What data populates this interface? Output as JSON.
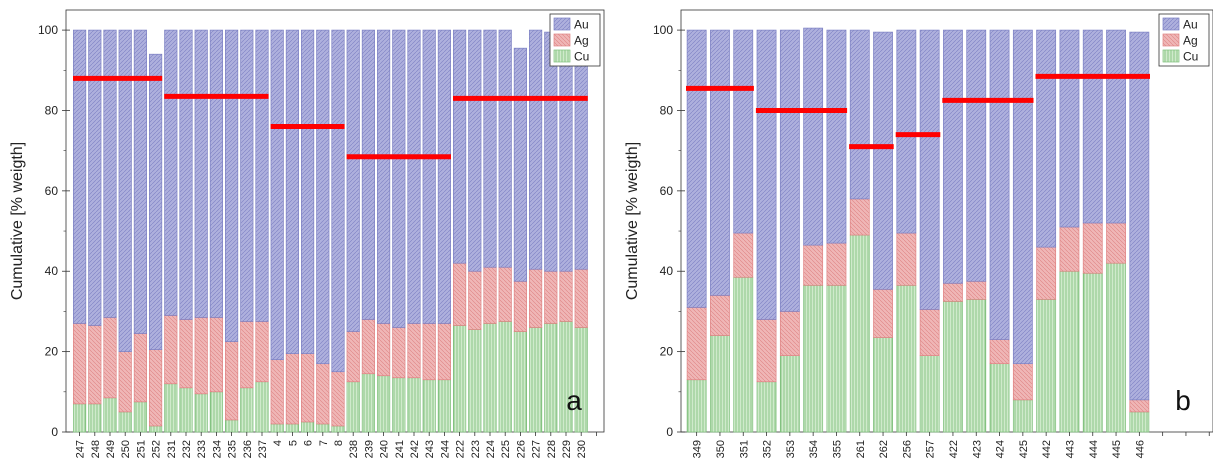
{
  "chart_data": [
    {
      "type": "bar",
      "stacked": true,
      "panel_label": "a",
      "ylabel": "Cumulative [% weigth]",
      "ylim": [
        0,
        105
      ],
      "yticks": [
        0,
        20,
        40,
        60,
        80,
        100
      ],
      "categories": [
        "247",
        "248",
        "249",
        "250",
        "251",
        "252",
        "231",
        "232",
        "233",
        "234",
        "235",
        "236",
        "237",
        "4",
        "5",
        "6",
        "7",
        "8",
        "238",
        "239",
        "240",
        "241",
        "242",
        "243",
        "244",
        "222",
        "223",
        "224",
        "225",
        "226",
        "227",
        "228",
        "229",
        "230"
      ],
      "series": [
        {
          "name": "Cu",
          "values": [
            7,
            7,
            8.5,
            5,
            7.5,
            1.5,
            12,
            11,
            9.5,
            10,
            3,
            11,
            12.5,
            2,
            2,
            2.5,
            2,
            1.5,
            12.5,
            14.5,
            14,
            13.5,
            13.5,
            13,
            13,
            26.5,
            25.5,
            27,
            27.5,
            25,
            26,
            27,
            27.5,
            26
          ]
        },
        {
          "name": "Ag",
          "values": [
            20,
            19.5,
            20,
            15,
            17,
            19,
            17,
            17,
            19,
            18.5,
            19.5,
            16.5,
            15,
            16,
            17.5,
            17,
            15,
            13.5,
            12.5,
            13.5,
            13,
            12.5,
            13.5,
            14,
            14,
            15.5,
            14.5,
            14,
            13.5,
            12.5,
            14.5,
            13,
            12.5,
            14.5
          ]
        },
        {
          "name": "Au",
          "values": [
            73,
            73.5,
            71.5,
            80,
            75.5,
            73.5,
            71,
            72,
            71.5,
            71.5,
            77.5,
            72.5,
            72.5,
            82,
            80.5,
            80.5,
            83,
            85,
            75,
            72,
            73,
            74,
            73,
            73,
            73,
            58,
            60,
            59,
            59,
            58,
            59.5,
            59.5,
            60,
            59.5
          ]
        }
      ],
      "averages": [
        {
          "from": 0,
          "to": 5,
          "value": 88
        },
        {
          "from": 6,
          "to": 12,
          "value": 83.5
        },
        {
          "from": 13,
          "to": 17,
          "value": 76
        },
        {
          "from": 18,
          "to": 24,
          "value": 68.5
        },
        {
          "from": 25,
          "to": 33,
          "value": 83
        }
      ],
      "legend": "top-right",
      "grid": false
    },
    {
      "type": "bar",
      "stacked": true,
      "panel_label": "b",
      "ylabel": "Cumulative [% weigth]",
      "ylim": [
        0,
        105
      ],
      "yticks": [
        0,
        20,
        40,
        60,
        80,
        100
      ],
      "categories": [
        "349",
        "350",
        "351",
        "352",
        "353",
        "354",
        "355",
        "261",
        "262",
        "256",
        "257",
        "422",
        "423",
        "424",
        "425",
        "442",
        "443",
        "444",
        "445",
        "446"
      ],
      "series": [
        {
          "name": "Cu",
          "values": [
            13,
            24,
            38.5,
            12.5,
            19,
            36.5,
            36.5,
            49,
            23.5,
            36.5,
            19,
            32.5,
            33,
            17,
            8,
            33,
            40,
            39.5,
            42,
            5
          ]
        },
        {
          "name": "Ag",
          "values": [
            18,
            10,
            11,
            15.5,
            11,
            10,
            10.5,
            9,
            12,
            13,
            11.5,
            4.5,
            4.5,
            6,
            9,
            13,
            11,
            12.5,
            10,
            3
          ]
        },
        {
          "name": "Au",
          "values": [
            69,
            66,
            50.5,
            72,
            70,
            54,
            53,
            42,
            64,
            50.5,
            69.5,
            63,
            62.5,
            77,
            83,
            54,
            49,
            48,
            48,
            91.5
          ]
        }
      ],
      "averages": [
        {
          "from": 0,
          "to": 2,
          "value": 85.5
        },
        {
          "from": 3,
          "to": 6,
          "value": 80
        },
        {
          "from": 7,
          "to": 8,
          "value": 71
        },
        {
          "from": 9,
          "to": 10,
          "value": 74
        },
        {
          "from": 11,
          "to": 14,
          "value": 82.5
        },
        {
          "from": 15,
          "to": 19,
          "value": 88.5
        }
      ],
      "legend": "top-right",
      "grid": false
    }
  ],
  "colors": {
    "Au": "#aeb0dd",
    "Au_hatch": "#7c80c3",
    "Ag": "#efb6b6",
    "Ag_hatch": "#df8383",
    "Cu": "#cfeacb",
    "Cu_hatch": "#7dbf7a",
    "average_line": "#ff0000",
    "axis": "#333333"
  }
}
